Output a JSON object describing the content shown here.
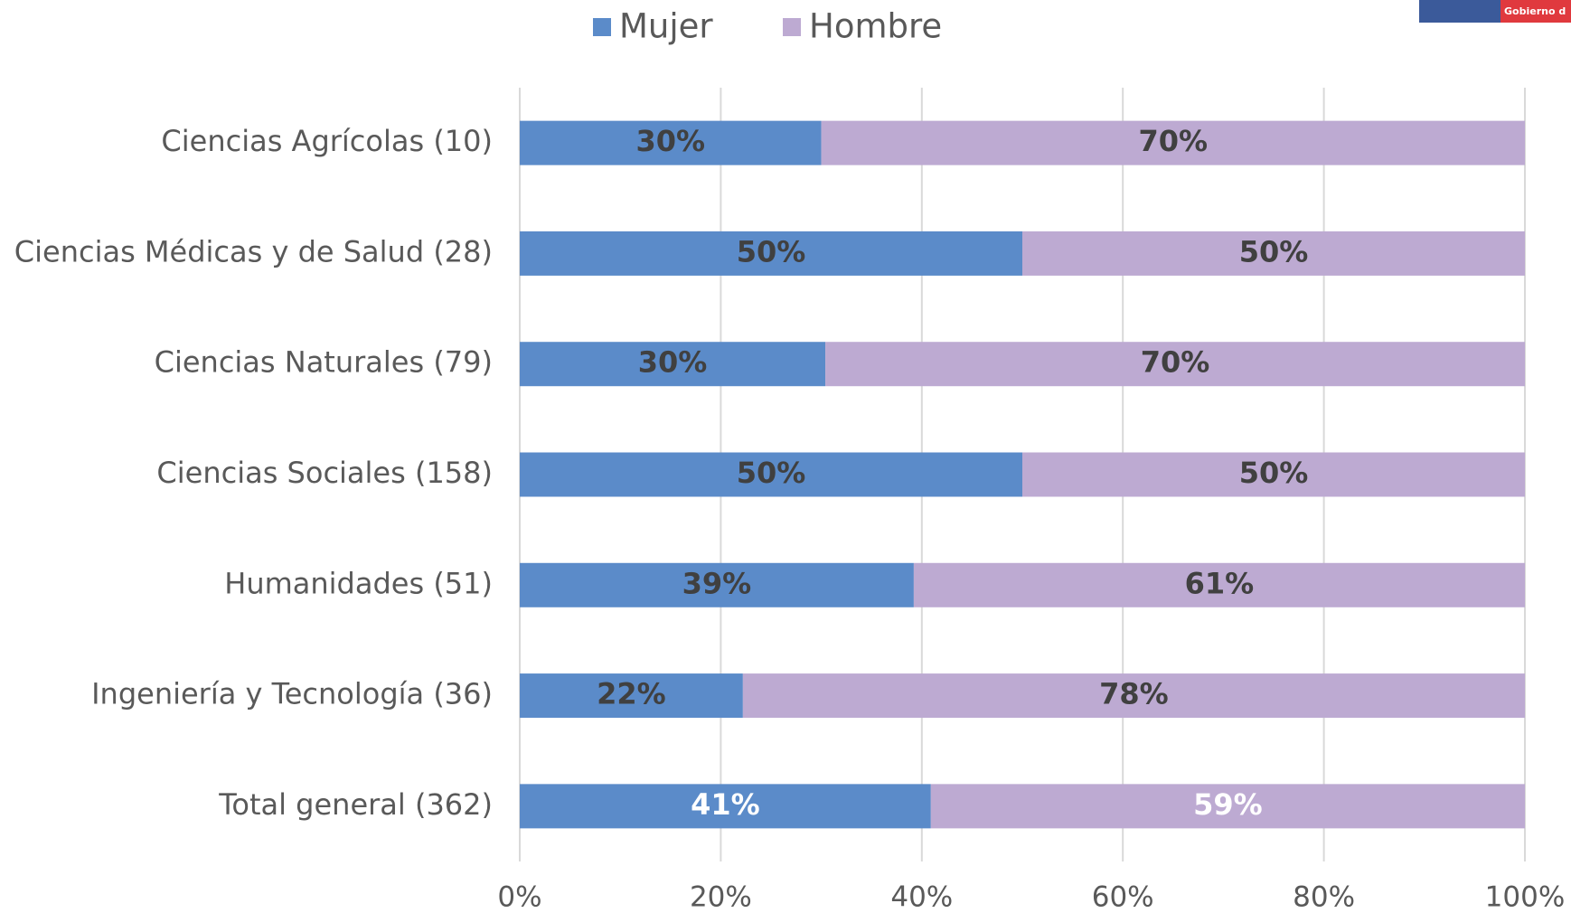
{
  "logo": "Gobierno d",
  "chart_data": {
    "type": "stacked-bar-horizontal",
    "categories": [
      "Ciencias Agrícolas (10)",
      "Ciencias Médicas y de Salud (28)",
      "Ciencias Naturales (79)",
      "Ciencias Sociales (158)",
      "Humanidades (51)",
      "Ingeniería y Tecnología (36)",
      "Total general (362)"
    ],
    "series": [
      {
        "name": "Mujer",
        "color": "#5b8bc9",
        "values": [
          30,
          50,
          30.4,
          50,
          39.2,
          22.2,
          40.9
        ],
        "value_labels": [
          "30%",
          "50%",
          "30%",
          "50%",
          "39%",
          "22%",
          "41%"
        ]
      },
      {
        "name": "Hombre",
        "color": "#bdaad2",
        "values": [
          70,
          50,
          69.6,
          50,
          60.8,
          77.8,
          59.1
        ],
        "value_labels": [
          "70%",
          "50%",
          "70%",
          "50%",
          "61%",
          "78%",
          "59%"
        ]
      }
    ],
    "xlim": [
      0,
      100
    ],
    "xticks": [
      {
        "value": 0,
        "label": "0%"
      },
      {
        "value": 20,
        "label": "20%"
      },
      {
        "value": 40,
        "label": "40%"
      },
      {
        "value": 60,
        "label": "60%"
      },
      {
        "value": 80,
        "label": "80%"
      },
      {
        "value": 100,
        "label": "100%"
      }
    ],
    "grid": true,
    "legend": "top"
  }
}
